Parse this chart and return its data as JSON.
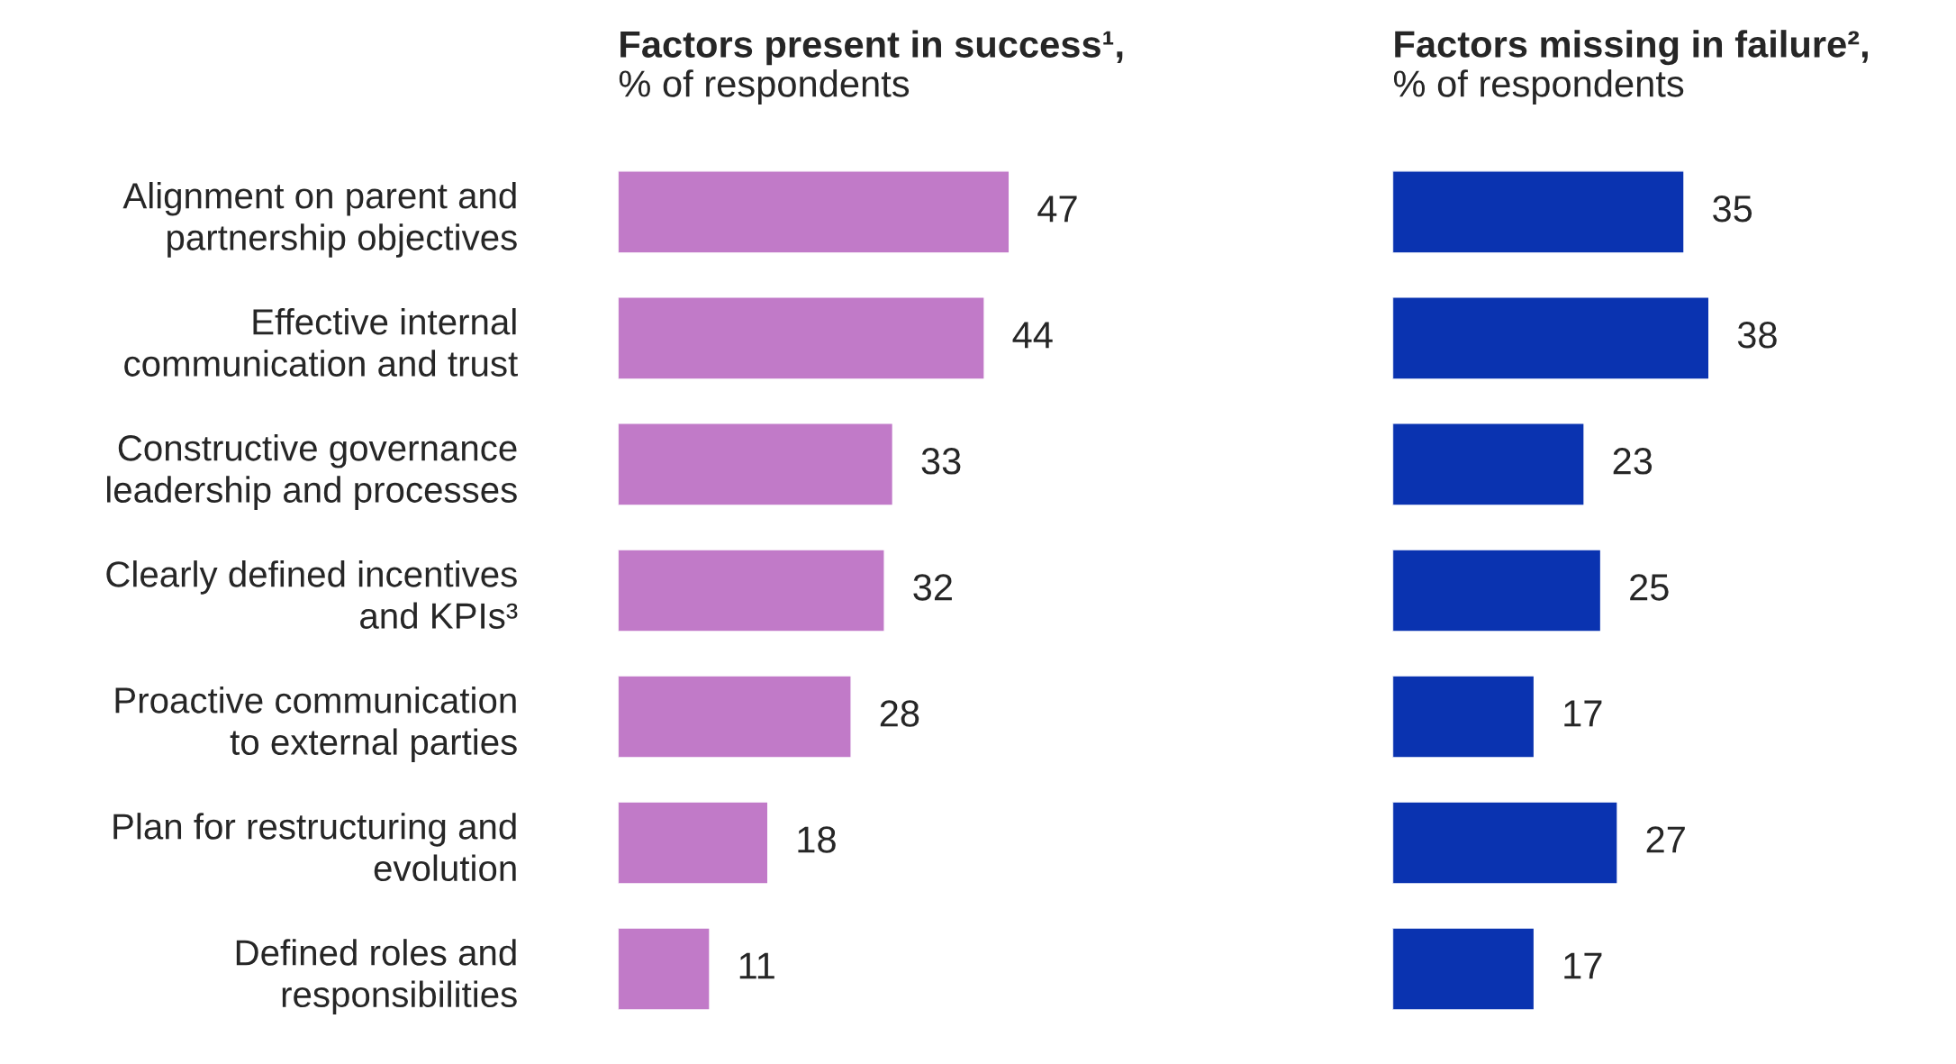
{
  "chart_data": [
    {
      "type": "bar",
      "orientation": "horizontal",
      "title": "Factors present in success¹,",
      "subtitle": "% of respondents",
      "categories": [
        "Alignment on parent and\npartnership objectives",
        "Effective internal\ncommunication and trust",
        "Constructive governance\nleadership and processes",
        "Clearly defined incentives\nand KPIs³",
        "Proactive communication\nto external parties",
        "Plan for restructuring and\nevolution",
        "Defined roles and\nresponsibilities"
      ],
      "series": [
        {
          "color": "#c17ac8",
          "values": [
            47,
            44,
            33,
            32,
            28,
            18,
            11
          ]
        }
      ],
      "data_labels": true,
      "tick_labels": "y",
      "grid": false,
      "legend": false
    },
    {
      "type": "bar",
      "orientation": "horizontal",
      "title": "Factors missing in failure²,",
      "subtitle": "% of respondents",
      "series": [
        {
          "color": "#0a33b0",
          "values": [
            35,
            38,
            23,
            25,
            17,
            27,
            17
          ]
        }
      ],
      "data_labels": true,
      "tick_labels": false,
      "grid": false,
      "legend": false
    }
  ]
}
